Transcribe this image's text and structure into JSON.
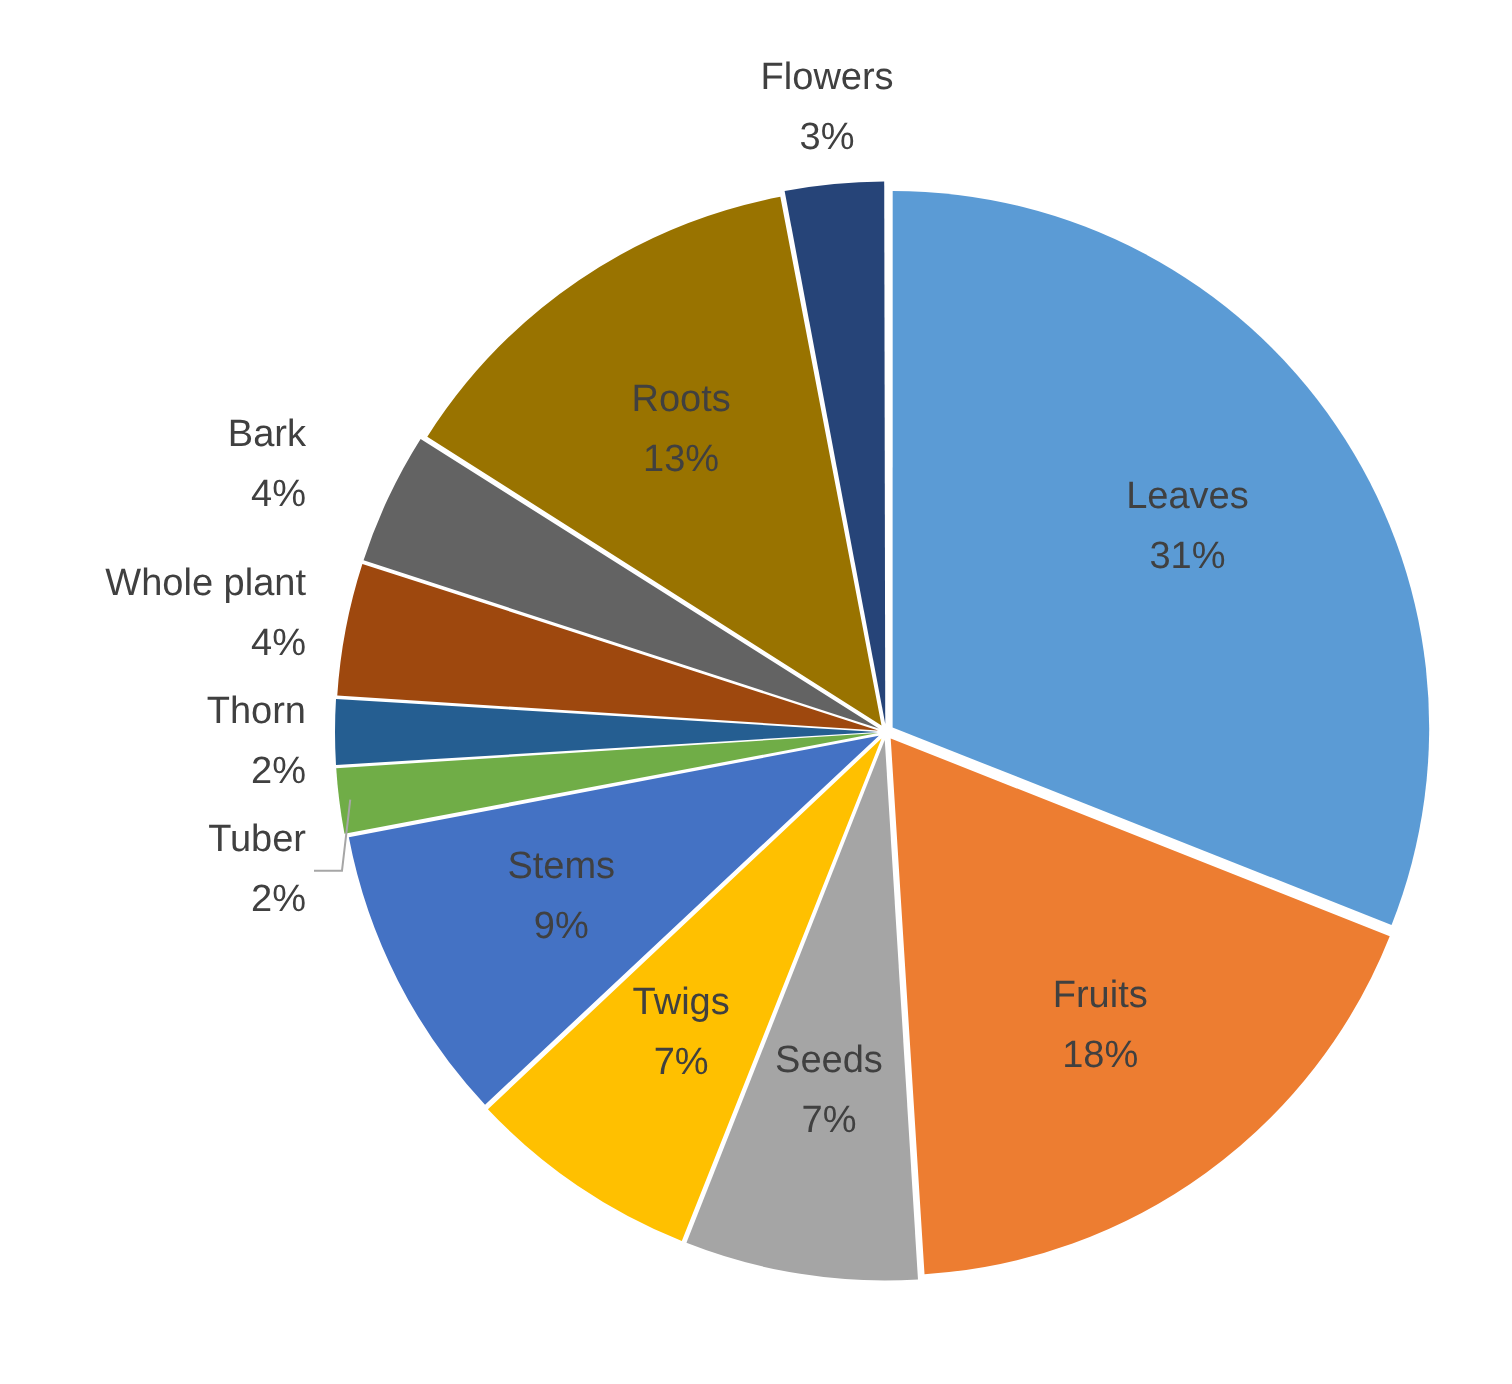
{
  "chart_data": {
    "type": "pie",
    "categories": [
      "Leaves",
      "Fruits",
      "Seeds",
      "Twigs",
      "Stems",
      "Tuber",
      "Thorn",
      "Whole plant",
      "Bark",
      "Roots",
      "Flowers"
    ],
    "values": [
      31,
      18,
      7,
      7,
      9,
      2,
      2,
      4,
      4,
      13,
      3
    ],
    "value_labels": [
      "31%",
      "18%",
      "7%",
      "7%",
      "9%",
      "2%",
      "2%",
      "4%",
      "4%",
      "13%",
      "3%"
    ],
    "colors": [
      "#5b9bd5",
      "#ed7d31",
      "#a5a5a5",
      "#ffc000",
      "#4472c4",
      "#70ad47",
      "#255e91",
      "#9e480e",
      "#636363",
      "#997300",
      "#264478"
    ],
    "legend": false
  }
}
